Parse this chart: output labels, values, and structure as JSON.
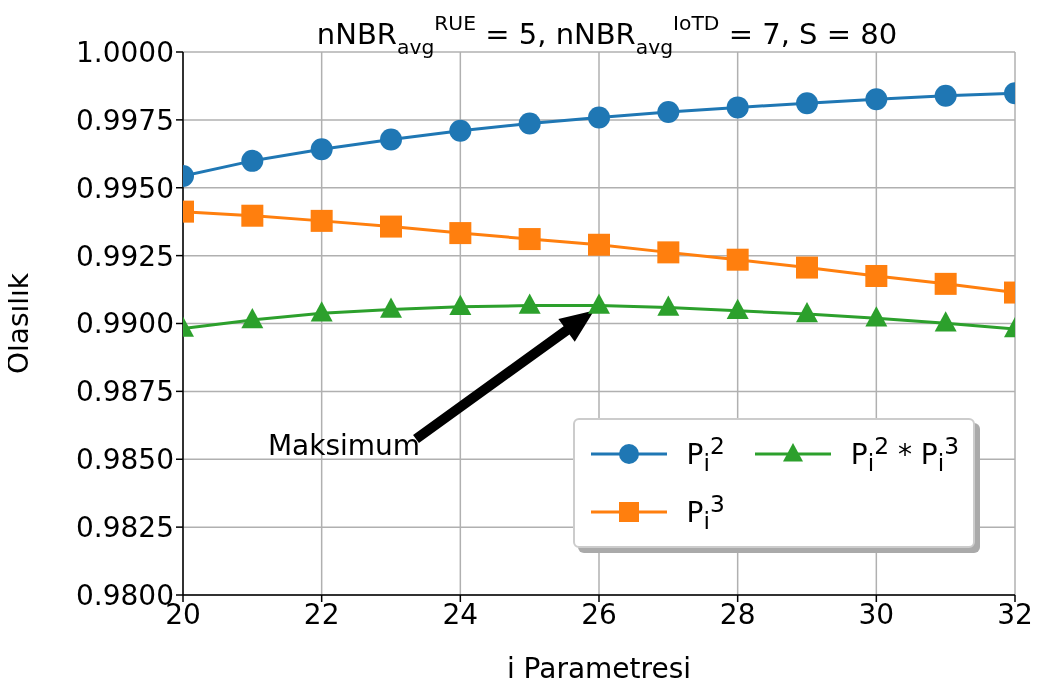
{
  "chart_data": {
    "type": "line",
    "title": "nNBR$_{avg}$$^{RUE}$ = 5, nNBR$_{avg}$$^{IoTD}$ = 7, S = 80",
    "xlabel": "i Parametresi",
    "ylabel": "Olasılık",
    "x": [
      20,
      21,
      22,
      23,
      24,
      25,
      26,
      27,
      28,
      29,
      30,
      31,
      32
    ],
    "series": [
      {
        "name": "P$_{i}$$^{2}$",
        "color": "#1f77b4",
        "marker": "circle",
        "values": [
          0.99543,
          0.99599,
          0.99642,
          0.99678,
          0.9971,
          0.99737,
          0.99759,
          0.99779,
          0.99796,
          0.99811,
          0.99826,
          0.99839,
          0.99848
        ]
      },
      {
        "name": "P$_{i}$$^{3}$",
        "color": "#ff7f0e",
        "marker": "square",
        "values": [
          0.99412,
          0.99397,
          0.99378,
          0.99357,
          0.99333,
          0.99311,
          0.9929,
          0.99262,
          0.99235,
          0.99206,
          0.99175,
          0.99146,
          0.99114
        ]
      },
      {
        "name": "P$_{i}$$^{2}$ * P$_{i}$$^{3}$",
        "color": "#2ca02c",
        "marker": "triangle",
        "values": [
          0.98982,
          0.99013,
          0.99038,
          0.99052,
          0.99062,
          0.99066,
          0.99066,
          0.99059,
          0.99047,
          0.99035,
          0.99019,
          0.99001,
          0.9898
        ]
      }
    ],
    "xlim": [
      20,
      32
    ],
    "xticks": [
      20,
      22,
      24,
      26,
      28,
      30,
      32
    ],
    "ylim": [
      0.98,
      1.0
    ],
    "yticks": [
      {
        "value": 0.98,
        "label": "0.9800"
      },
      {
        "value": 0.9825,
        "label": "0.9825"
      },
      {
        "value": 0.985,
        "label": "0.9850"
      },
      {
        "value": 0.9875,
        "label": "0.9875"
      },
      {
        "value": 0.99,
        "label": "0.9900"
      },
      {
        "value": 0.9925,
        "label": "0.9925"
      },
      {
        "value": 0.995,
        "label": "0.9950"
      },
      {
        "value": 0.9975,
        "label": "0.9975"
      },
      {
        "value": 1.0,
        "label": "1.0000"
      }
    ],
    "annotations": [
      "Maksimum"
    ],
    "grid": true,
    "legend": "bottom right",
    "line_style": "solid"
  }
}
